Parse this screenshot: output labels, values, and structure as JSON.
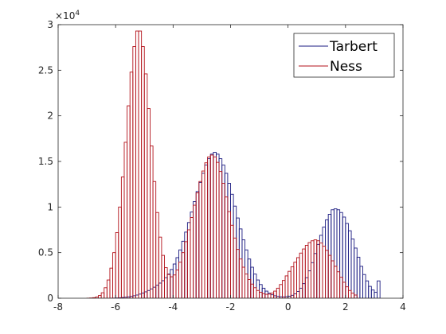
{
  "chart_data": {
    "type": "histogram",
    "xlim": [
      -8,
      4
    ],
    "ylim": [
      0,
      30000
    ],
    "xticks": [
      -8,
      -6,
      -4,
      -2,
      0,
      2,
      4
    ],
    "xtick_labels": [
      "-8",
      "-6",
      "-4",
      "-2",
      "0",
      "2",
      "4"
    ],
    "yticks": [
      0,
      5000,
      10000,
      15000,
      20000,
      25000,
      30000
    ],
    "ytick_labels": [
      "0",
      "0.5",
      "1",
      "1.5",
      "2",
      "2.5",
      "3"
    ],
    "y_exponent": {
      "base": "×10",
      "power": "4"
    },
    "bin_start": -7.2,
    "bin_width": 0.1,
    "grid": false,
    "legend_position": "top-right",
    "series": [
      {
        "name": "Tarbert",
        "color": "#1a1a80",
        "counts": [
          0,
          0,
          0,
          0,
          0,
          0,
          0,
          0,
          0,
          0,
          10,
          20,
          30,
          50,
          80,
          110,
          150,
          200,
          270,
          350,
          450,
          560,
          700,
          850,
          1020,
          1210,
          1420,
          1660,
          1920,
          2250,
          2650,
          3150,
          3750,
          4450,
          5300,
          6250,
          7250,
          8300,
          9450,
          10600,
          11700,
          12700,
          13700,
          14600,
          15300,
          15800,
          16000,
          15800,
          15300,
          14600,
          13700,
          12600,
          11400,
          10100,
          8800,
          7600,
          6400,
          5300,
          4300,
          3400,
          2650,
          2000,
          1500,
          1100,
          780,
          550,
          380,
          270,
          200,
          160,
          150,
          170,
          220,
          320,
          480,
          740,
          1100,
          1600,
          2250,
          3000,
          3900,
          4900,
          5900,
          6900,
          7800,
          8600,
          9200,
          9700,
          9800,
          9700,
          9400,
          8900,
          8200,
          7400,
          6500,
          5500,
          4500,
          3500,
          2600,
          1900,
          1300,
          900,
          650,
          1900
        ]
      },
      {
        "name": "Ness",
        "color": "#b3121b",
        "counts": [
          0,
          0,
          10,
          30,
          60,
          140,
          300,
          600,
          1150,
          2000,
          3300,
          5000,
          7200,
          10000,
          13300,
          17100,
          21100,
          24800,
          27600,
          29300,
          29300,
          27600,
          24600,
          20800,
          16700,
          12800,
          9400,
          6700,
          4700,
          3350,
          2600,
          2350,
          2550,
          3100,
          3950,
          5000,
          6200,
          7500,
          8850,
          10200,
          11550,
          12800,
          13950,
          14850,
          15500,
          15700,
          15500,
          14900,
          13900,
          12600,
          11100,
          9500,
          8000,
          6600,
          5350,
          4300,
          3400,
          2650,
          2050,
          1550,
          1150,
          850,
          650,
          500,
          430,
          450,
          560,
          780,
          1100,
          1500,
          1950,
          2450,
          2950,
          3450,
          3950,
          4450,
          4950,
          5400,
          5800,
          6100,
          6300,
          6400,
          6300,
          6050,
          5700,
          5250,
          4700,
          4100,
          3500,
          2900,
          2300,
          1750,
          1250,
          850,
          550,
          350
        ]
      }
    ]
  }
}
